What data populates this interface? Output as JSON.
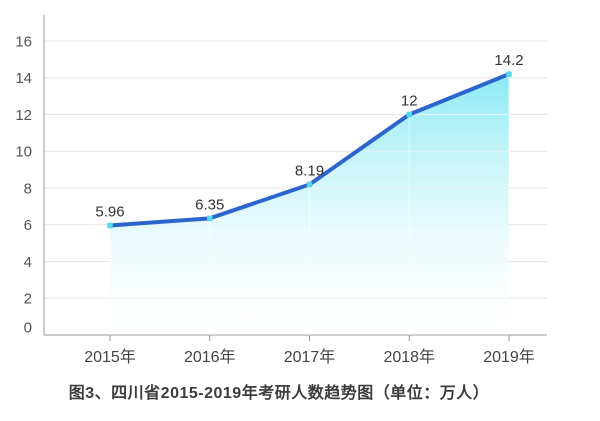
{
  "chart_data": {
    "type": "area",
    "title": "图3、四川省2015-2019年考研人数趋势图（单位：万人）",
    "categories": [
      "2015年",
      "2016年",
      "2017年",
      "2018年",
      "2019年"
    ],
    "values": [
      5.96,
      6.35,
      8.19,
      12,
      14.2
    ],
    "point_labels": [
      "5.96",
      "6.35",
      "8.19",
      "12",
      "14.2"
    ],
    "xlabel": "",
    "ylabel": "",
    "ylim": [
      0,
      16
    ],
    "y_ticks": [
      0,
      2,
      4,
      6,
      8,
      10,
      12,
      14,
      16
    ],
    "grid": true,
    "legend": false,
    "colors": {
      "line": "#2c66cc",
      "marker": "#55d9ea",
      "area_top": "#7ee7f2",
      "area_bottom": "#ffffff",
      "gridline": "#e4e4e4",
      "inner_gridline": "rgba(255,255,255,0.55)",
      "axis": "#999999",
      "y_tick_label": "#555555",
      "x_tick_label": "#444444",
      "data_label": "#333333",
      "caption": "#3c3c3c"
    }
  }
}
